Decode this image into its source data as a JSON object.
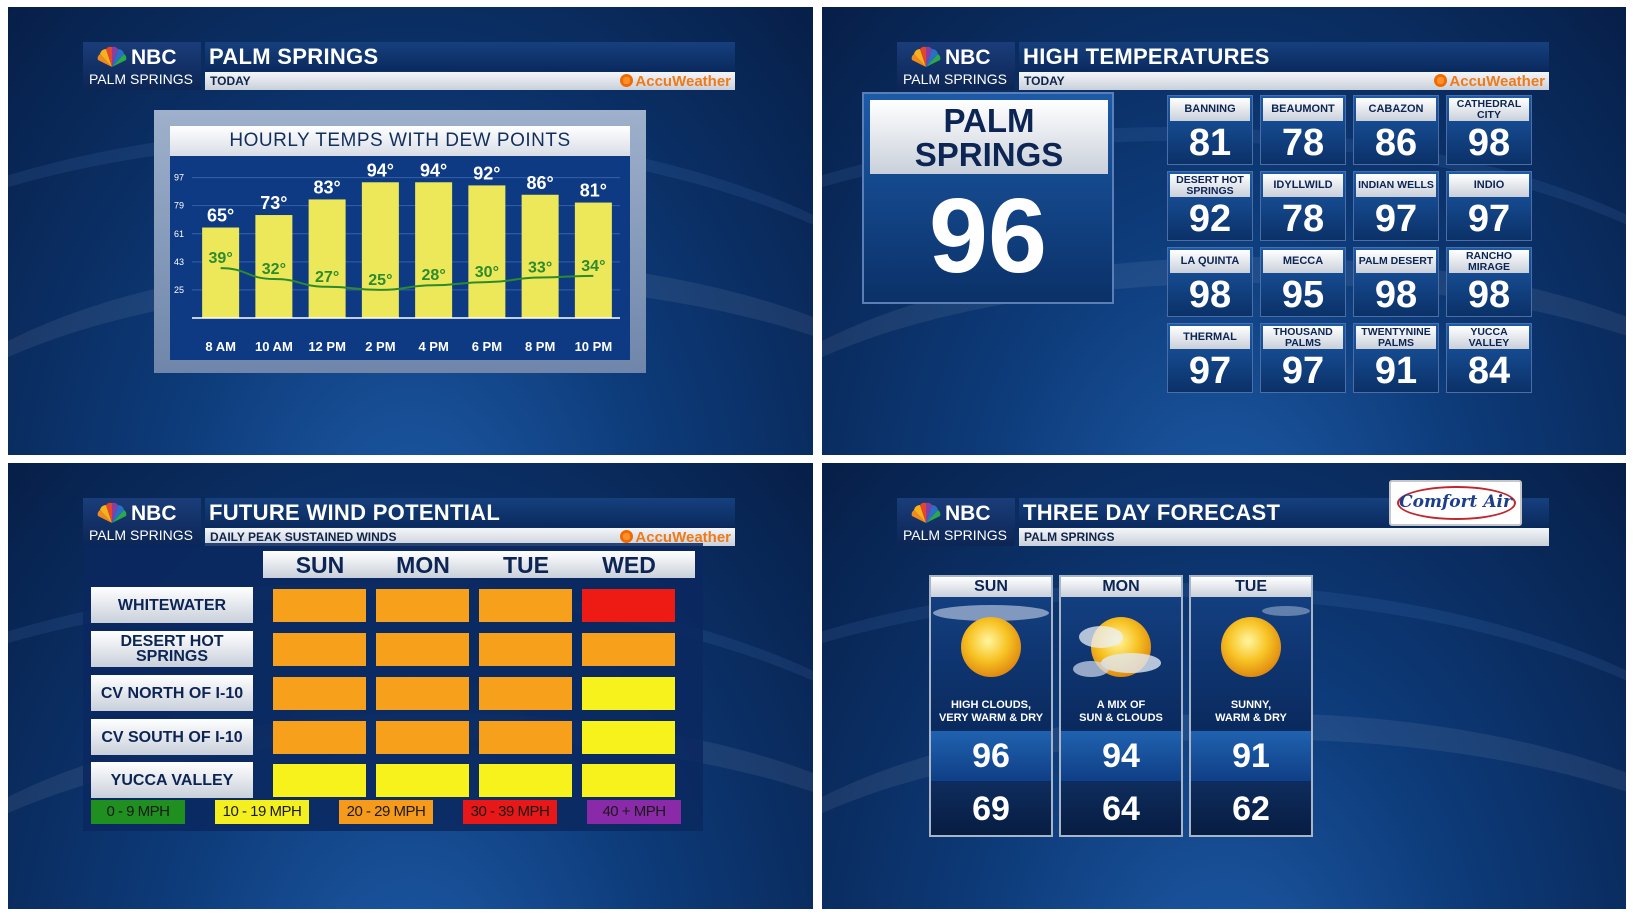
{
  "brand": {
    "network": "NBC",
    "station": "PALM SPRINGS",
    "partner": "AccuWeather",
    "sponsor": "Comfort Air"
  },
  "panel1": {
    "title": "PALM SPRINGS",
    "subtitle": "TODAY",
    "chart_title": "HOURLY TEMPS WITH DEW POINTS",
    "chart_data": {
      "type": "bar",
      "categories": [
        "8 AM",
        "10 AM",
        "12 PM",
        "2 PM",
        "4 PM",
        "6 PM",
        "8 PM",
        "10 PM"
      ],
      "series": [
        {
          "values": [
            65,
            73,
            83,
            94,
            94,
            92,
            86,
            81
          ]
        },
        {
          "values": [
            39,
            32,
            27,
            25,
            28,
            30,
            33,
            34
          ]
        }
      ],
      "temp_labels": [
        "65°",
        "73°",
        "83°",
        "94°",
        "94°",
        "92°",
        "86°",
        "81°"
      ],
      "dew_labels": [
        "39°",
        "32°",
        "27°",
        "25°",
        "28°",
        "30°",
        "33°",
        "34°"
      ],
      "y_ticks": [
        97,
        79,
        61,
        43,
        25
      ],
      "ylim": [
        7,
        107
      ],
      "bar_color": "#ece85a",
      "line_color": "#2d8a2d"
    }
  },
  "panel2": {
    "title": "HIGH TEMPERATURES",
    "subtitle": "TODAY",
    "main_city": "PALM SPRINGS",
    "main_temp": "96",
    "cities": [
      {
        "name": "BANNING",
        "temp": "81"
      },
      {
        "name": "BEAUMONT",
        "temp": "78"
      },
      {
        "name": "CABAZON",
        "temp": "86"
      },
      {
        "name": "CATHEDRAL CITY",
        "temp": "98"
      },
      {
        "name": "DESERT HOT SPRINGS",
        "temp": "92"
      },
      {
        "name": "IDYLLWILD",
        "temp": "78"
      },
      {
        "name": "INDIAN WELLS",
        "temp": "97"
      },
      {
        "name": "INDIO",
        "temp": "97"
      },
      {
        "name": "LA QUINTA",
        "temp": "98"
      },
      {
        "name": "MECCA",
        "temp": "95"
      },
      {
        "name": "PALM DESERT",
        "temp": "98"
      },
      {
        "name": "RANCHO MIRAGE",
        "temp": "98"
      },
      {
        "name": "THERMAL",
        "temp": "97"
      },
      {
        "name": "THOUSAND PALMS",
        "temp": "97"
      },
      {
        "name": "TWENTYNINE PALMS",
        "temp": "91"
      },
      {
        "name": "YUCCA VALLEY",
        "temp": "84"
      }
    ]
  },
  "panel3": {
    "title": "FUTURE WIND POTENTIAL",
    "subtitle": "DAILY PEAK SUSTAINED WINDS",
    "days": [
      "SUN",
      "MON",
      "TUE",
      "WED"
    ],
    "rows": [
      {
        "location": "WHITEWATER",
        "levels": [
          "orange",
          "orange",
          "orange",
          "red"
        ]
      },
      {
        "location": "DESERT HOT SPRINGS",
        "levels": [
          "orange",
          "orange",
          "orange",
          "orange"
        ]
      },
      {
        "location": "CV NORTH OF I-10",
        "levels": [
          "orange",
          "orange",
          "orange",
          "yellow"
        ]
      },
      {
        "location": "CV SOUTH OF I-10",
        "levels": [
          "orange",
          "orange",
          "orange",
          "yellow"
        ]
      },
      {
        "location": "YUCCA VALLEY",
        "levels": [
          "yellow",
          "yellow",
          "yellow",
          "yellow"
        ]
      }
    ],
    "legend": [
      {
        "label": "0 - 9 MPH",
        "color": "#1f8f1f"
      },
      {
        "label": "10 - 19 MPH",
        "color": "#f4f020"
      },
      {
        "label": "20 - 29 MPH",
        "color": "#f59a1b"
      },
      {
        "label": "30 - 39 MPH",
        "color": "#e81818"
      },
      {
        "label": "40 + MPH",
        "color": "#8a2aa8"
      }
    ],
    "colors": {
      "yellow": "#f8f21c",
      "orange": "#f7a01c",
      "red": "#ee1a14"
    }
  },
  "panel4": {
    "title": "THREE DAY FORECAST",
    "subtitle": "PALM SPRINGS",
    "days": [
      {
        "day": "SUN",
        "condition_line1": "HIGH CLOUDS,",
        "condition_line2": "VERY WARM & DRY",
        "high": "96",
        "low": "69",
        "icon": "sun-high-clouds-icon"
      },
      {
        "day": "MON",
        "condition_line1": "A MIX OF",
        "condition_line2": "SUN & CLOUDS",
        "high": "94",
        "low": "64",
        "icon": "sun-clouds-icon"
      },
      {
        "day": "TUE",
        "condition_line1": "SUNNY,",
        "condition_line2": "WARM & DRY",
        "high": "91",
        "low": "62",
        "icon": "sun-icon"
      }
    ]
  }
}
